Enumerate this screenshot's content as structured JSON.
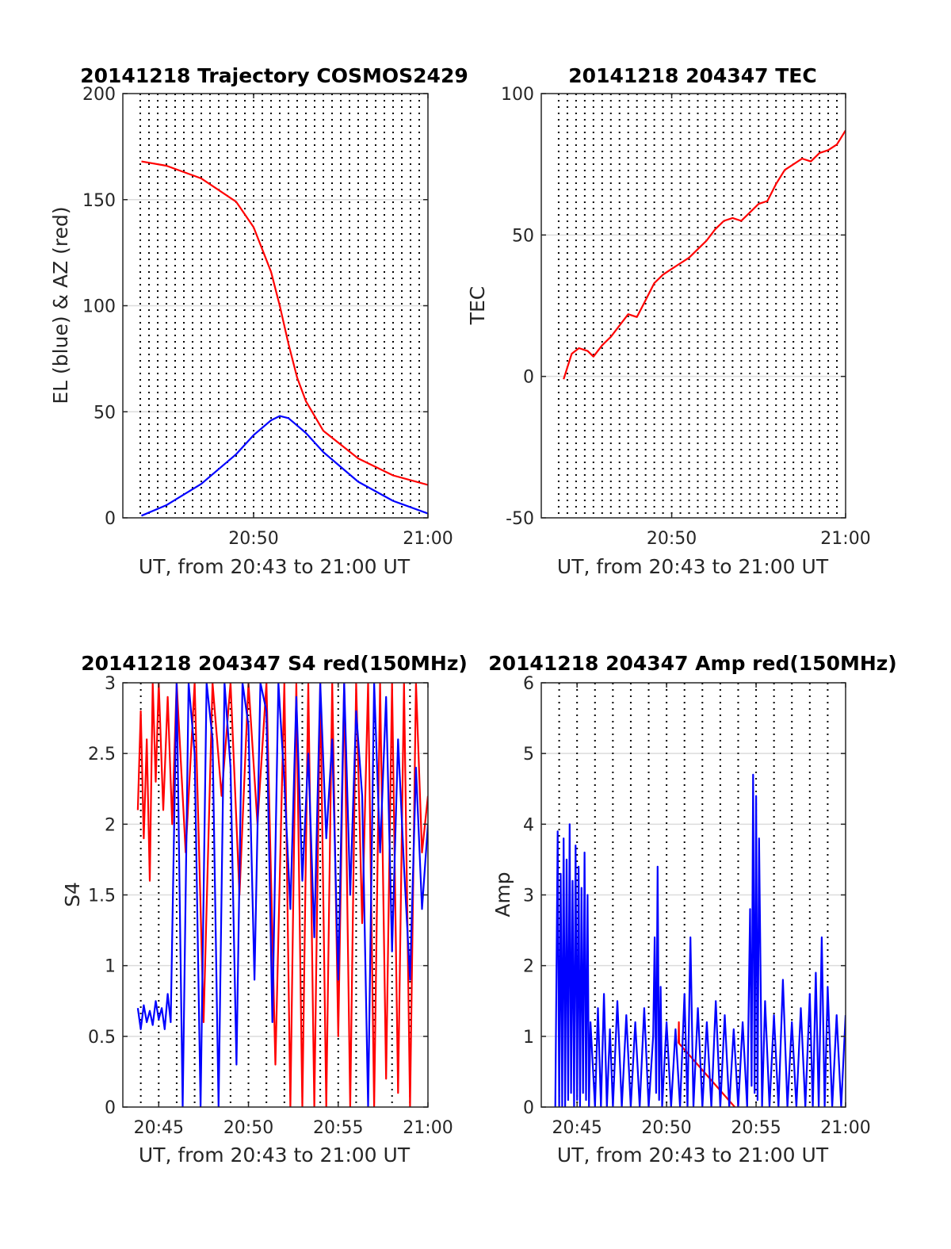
{
  "figure": {
    "background": "#ffffff",
    "grid_color": "#dcdcdc",
    "vline_color": "#000000",
    "axis_color": "#262626"
  },
  "chart_data": [
    {
      "type": "line",
      "title": "20141218 Trajectory COSMOS2429",
      "xlabel": "UT, from 20:43 to 21:00 UT",
      "ylabel": "EL (blue) & AZ (red)",
      "xlim": [
        "20:42:30",
        "21:00:00"
      ],
      "ylim": [
        0,
        200
      ],
      "yticks": [
        0,
        50,
        100,
        150,
        200
      ],
      "xticks": [
        "20:50",
        "21:00"
      ],
      "grid": true,
      "series": [
        {
          "color": "#ff0000",
          "x": [
            "20:43:34",
            "20:45:00",
            "20:47:00",
            "20:49:00",
            "20:50:00",
            "20:51:00",
            "20:51:30",
            "20:52:00",
            "20:52:30",
            "20:53:00",
            "20:54:00",
            "20:56:00",
            "20:58:00",
            "21:00:00"
          ],
          "values": [
            168,
            166,
            160,
            149,
            137,
            116,
            100,
            82,
            66,
            55,
            41,
            28,
            20,
            15.5
          ]
        },
        {
          "color": "#0000ff",
          "x": [
            "20:43:34",
            "20:45:00",
            "20:47:00",
            "20:49:00",
            "20:50:00",
            "20:51:00",
            "20:51:30",
            "20:52:00",
            "20:53:00",
            "20:54:00",
            "20:56:00",
            "20:58:00",
            "21:00:00"
          ],
          "values": [
            1,
            6,
            16,
            30,
            39,
            46,
            48,
            47,
            40,
            31,
            17,
            8,
            2
          ]
        }
      ],
      "vlines": [
        "20:43:30",
        "20:44:00",
        "20:44:30",
        "20:45:00",
        "20:45:30",
        "20:46:00",
        "20:46:30",
        "20:47:00",
        "20:47:30",
        "20:48:00",
        "20:48:30",
        "20:49:00",
        "20:49:30",
        "20:50:00",
        "20:50:30",
        "20:51:00",
        "20:51:30",
        "20:52:00",
        "20:52:30",
        "20:53:00",
        "20:53:30",
        "20:54:00",
        "20:54:30",
        "20:55:00",
        "20:55:30",
        "20:56:00",
        "20:56:30",
        "20:57:00",
        "20:57:30",
        "20:58:00",
        "20:58:30",
        "20:59:00",
        "20:59:30"
      ]
    },
    {
      "type": "line",
      "title": "20141218 204347 TEC",
      "xlabel": "UT, from 20:43 to 21:00 UT",
      "ylabel": "TEC",
      "xlim": [
        "20:42:30",
        "21:00:00"
      ],
      "ylim": [
        -50,
        100
      ],
      "yticks": [
        -50,
        0,
        50,
        100
      ],
      "xticks": [
        "20:50",
        "21:00"
      ],
      "grid": true,
      "series": [
        {
          "color": "#ff0000",
          "x": [
            "20:43:47",
            "20:44:15",
            "20:44:40",
            "20:45:10",
            "20:45:30",
            "20:46:00",
            "20:46:30",
            "20:47:00",
            "20:47:30",
            "20:48:00",
            "20:48:30",
            "20:49:00",
            "20:49:30",
            "20:50:00",
            "20:50:30",
            "20:51:00",
            "20:51:30",
            "20:52:00",
            "20:52:30",
            "20:53:00",
            "20:53:30",
            "20:54:00",
            "20:54:30",
            "20:55:00",
            "20:55:30",
            "20:56:00",
            "20:56:30",
            "20:57:00",
            "20:57:30",
            "20:58:00",
            "20:58:30",
            "20:59:00",
            "20:59:30",
            "21:00:00"
          ],
          "values": [
            -1,
            8,
            10,
            9,
            7,
            11,
            14,
            18,
            22,
            21,
            27,
            33,
            36,
            38,
            40,
            42,
            45,
            48,
            52,
            55,
            56,
            55,
            58,
            61,
            62,
            68,
            73,
            75,
            77,
            76,
            79,
            80,
            82,
            87
          ]
        }
      ],
      "vlines": [
        "20:43:30",
        "20:44:00",
        "20:44:30",
        "20:45:00",
        "20:45:30",
        "20:46:00",
        "20:46:30",
        "20:47:00",
        "20:47:30",
        "20:48:00",
        "20:48:30",
        "20:49:00",
        "20:49:30",
        "20:50:00",
        "20:50:30",
        "20:51:00",
        "20:51:30",
        "20:52:00",
        "20:52:30",
        "20:53:00",
        "20:53:30",
        "20:54:00",
        "20:54:30",
        "20:55:00",
        "20:55:30",
        "20:56:00",
        "20:56:30",
        "20:57:00",
        "20:57:30",
        "20:58:00",
        "20:58:30",
        "20:59:00",
        "20:59:30"
      ]
    },
    {
      "type": "line",
      "title": "20141218 204347 S4 red(150MHz)",
      "xlabel": "UT, from 20:43 to 21:00 UT",
      "ylabel": "S4",
      "xlim": [
        "20:43:00",
        "21:00:00"
      ],
      "ylim": [
        0,
        3
      ],
      "yticks": [
        0,
        0.5,
        1,
        1.5,
        2,
        2.5,
        3
      ],
      "ytick_labels": [
        "0",
        "0.5",
        "1",
        "1.5",
        "2",
        "2.5",
        "3"
      ],
      "xticks": [
        "20:45",
        "20:50",
        "20:55",
        "21:00"
      ],
      "grid": true,
      "series": [
        {
          "color": "#ff0000",
          "x": [
            "20:43:50",
            "20:44:00",
            "20:44:10",
            "20:44:20",
            "20:44:30",
            "20:44:40",
            "20:44:50",
            "20:45:00",
            "20:45:15",
            "20:45:30",
            "20:45:45",
            "20:46:00",
            "20:46:30",
            "20:47:00",
            "20:47:30",
            "20:48:00",
            "20:48:30",
            "20:49:00",
            "20:49:30",
            "20:50:00",
            "20:50:30",
            "20:51:00",
            "20:51:30",
            "20:52:00",
            "20:52:20",
            "20:52:40",
            "20:53:00",
            "20:53:20",
            "20:53:40",
            "20:54:00",
            "20:54:20",
            "20:54:40",
            "20:55:00",
            "20:55:20",
            "20:55:40",
            "20:56:00",
            "20:56:20",
            "20:56:40",
            "20:57:00",
            "20:57:20",
            "20:57:40",
            "20:58:00",
            "20:58:20",
            "20:58:40",
            "20:59:00",
            "20:59:20",
            "20:59:40",
            "21:00:00"
          ],
          "values": [
            2.1,
            2.8,
            1.9,
            2.6,
            1.6,
            3,
            2.3,
            3,
            2.1,
            2.9,
            2.0,
            3,
            1.8,
            3,
            0.6,
            3,
            2.2,
            3,
            1.5,
            3,
            2.0,
            3,
            0.3,
            3,
            0,
            3,
            0,
            3,
            0,
            3,
            0,
            3,
            0.5,
            3,
            0,
            3,
            1.3,
            3,
            0,
            3,
            0.2,
            3,
            0.1,
            3,
            0,
            3,
            1.8,
            2.2
          ]
        },
        {
          "color": "#0000ff",
          "x": [
            "20:43:50",
            "20:44:00",
            "20:44:10",
            "20:44:20",
            "20:44:30",
            "20:44:40",
            "20:44:50",
            "20:45:00",
            "20:45:10",
            "20:45:20",
            "20:45:30",
            "20:45:40",
            "20:46:00",
            "20:46:20",
            "20:46:40",
            "20:47:00",
            "20:47:20",
            "20:47:40",
            "20:48:00",
            "20:48:20",
            "20:48:40",
            "20:49:00",
            "20:49:20",
            "20:49:40",
            "20:50:00",
            "20:50:20",
            "20:50:40",
            "20:51:00",
            "20:51:20",
            "20:51:40",
            "20:52:00",
            "20:52:20",
            "20:52:40",
            "20:53:00",
            "20:53:20",
            "20:53:40",
            "20:54:00",
            "20:54:20",
            "20:54:40",
            "20:55:00",
            "20:55:20",
            "20:55:40",
            "20:56:00",
            "20:56:20",
            "20:56:40",
            "20:57:00",
            "20:57:20",
            "20:57:40",
            "20:58:00",
            "20:58:20",
            "20:58:40",
            "20:59:00",
            "20:59:20",
            "20:59:40",
            "21:00:00"
          ],
          "values": [
            0.7,
            0.55,
            0.72,
            0.6,
            0.68,
            0.58,
            0.75,
            0.62,
            0.7,
            0.55,
            0.8,
            0.6,
            3,
            0,
            3,
            2.5,
            0,
            3,
            2.6,
            0,
            3,
            2.4,
            0.3,
            3,
            2.7,
            0.9,
            3,
            2.8,
            0.6,
            3,
            2.3,
            1.4,
            2.9,
            1.6,
            2.5,
            1.2,
            3,
            1.9,
            2.6,
            0.9,
            3,
            1.5,
            2.8,
            2.2,
            0,
            3,
            1.8,
            2.9,
            1.1,
            2.6,
            1.7,
            0.9,
            2.4,
            1.4,
            2.0
          ]
        }
      ],
      "vlines": [
        "20:44:00",
        "20:45:00",
        "20:46:00",
        "20:47:00",
        "20:48:00",
        "20:49:00",
        "20:50:00",
        "20:51:00",
        "20:52:00",
        "20:53:00",
        "20:54:00",
        "20:55:00",
        "20:56:00",
        "20:57:00",
        "20:58:00",
        "20:59:00"
      ]
    },
    {
      "type": "line",
      "title": "20141218 204347 Amp red(150MHz)",
      "xlabel": "UT, from 20:43 to 21:00 UT",
      "ylabel": "Amp",
      "xlim": [
        "20:43:00",
        "21:00:00"
      ],
      "ylim": [
        0,
        6
      ],
      "yticks": [
        0,
        1,
        2,
        3,
        4,
        5,
        6
      ],
      "xticks": [
        "20:45",
        "20:50",
        "20:55",
        "21:00"
      ],
      "grid": true,
      "series": [
        {
          "color": "#ff0000",
          "x": [
            "20:50:40",
            "20:50:41",
            "20:50:42",
            "20:53:59",
            "20:54:00"
          ],
          "values": [
            0.9,
            1.2,
            0.9,
            -0.05,
            0.05
          ]
        },
        {
          "color": "#0000ff",
          "x": [
            "20:43:47",
            "20:43:55",
            "20:44:00",
            "20:44:05",
            "20:44:10",
            "20:44:15",
            "20:44:20",
            "20:44:25",
            "20:44:30",
            "20:44:35",
            "20:44:40",
            "20:44:45",
            "20:44:50",
            "20:44:55",
            "20:45:00",
            "20:45:05",
            "20:45:10",
            "20:45:15",
            "20:45:20",
            "20:45:25",
            "20:45:30",
            "20:45:35",
            "20:45:40",
            "20:45:45",
            "20:46:00",
            "20:46:10",
            "20:46:20",
            "20:46:30",
            "20:46:40",
            "20:46:50",
            "20:47:00",
            "20:47:15",
            "20:47:30",
            "20:47:45",
            "20:48:00",
            "20:48:15",
            "20:48:30",
            "20:48:45",
            "20:49:00",
            "20:49:15",
            "20:49:20",
            "20:49:25",
            "20:49:30",
            "20:49:35",
            "20:49:40",
            "20:49:45",
            "20:50:00",
            "20:50:15",
            "20:50:30",
            "20:50:45",
            "20:51:00",
            "20:51:10",
            "20:51:20",
            "20:51:30",
            "20:51:45",
            "20:52:00",
            "20:52:15",
            "20:52:30",
            "20:52:45",
            "20:53:00",
            "20:53:15",
            "20:53:30",
            "20:53:45",
            "20:54:00",
            "20:54:15",
            "20:54:30",
            "20:54:40",
            "20:54:45",
            "20:54:50",
            "20:54:55",
            "20:55:00",
            "20:55:05",
            "20:55:10",
            "20:55:20",
            "20:55:30",
            "20:55:45",
            "20:56:00",
            "20:56:15",
            "20:56:30",
            "20:56:45",
            "20:57:00",
            "20:57:15",
            "20:57:30",
            "20:57:45",
            "20:58:00",
            "20:58:10",
            "20:58:20",
            "20:58:30",
            "20:58:40",
            "20:58:50",
            "20:59:00",
            "20:59:15",
            "20:59:30",
            "20:59:45",
            "21:00:00"
          ],
          "values": [
            0,
            3.9,
            0,
            3.3,
            0,
            3.8,
            0,
            3.5,
            0.1,
            4.0,
            0.2,
            3.2,
            0,
            3.7,
            0.1,
            3.4,
            0,
            3.1,
            0.2,
            3.6,
            0.1,
            3.0,
            0,
            1.2,
            0,
            1.4,
            0,
            1.6,
            0,
            1.1,
            0,
            1.5,
            0,
            1.3,
            0,
            1.2,
            0,
            1.4,
            0,
            1.0,
            2.4,
            0.2,
            3.4,
            0.1,
            1.7,
            0,
            1.2,
            0,
            1.1,
            0,
            1.6,
            0,
            2.4,
            0,
            1.4,
            0,
            1.2,
            0,
            1.5,
            0,
            1.3,
            0,
            1.1,
            0,
            1.2,
            0,
            2.8,
            0.3,
            4.7,
            0.2,
            4.4,
            0.1,
            3.8,
            0,
            1.5,
            0,
            1.3,
            0,
            1.8,
            0,
            1.2,
            0,
            1.4,
            0,
            1.6,
            0,
            1.9,
            0,
            2.4,
            0,
            1.7,
            0,
            1.3,
            0,
            1.3
          ]
        }
      ],
      "vlines": [
        "20:44:00",
        "20:45:00",
        "20:46:00",
        "20:47:00",
        "20:48:00",
        "20:49:00",
        "20:50:00",
        "20:51:00",
        "20:52:00",
        "20:53:00",
        "20:54:00",
        "20:55:00",
        "20:56:00",
        "20:57:00",
        "20:58:00",
        "20:59:00"
      ]
    }
  ]
}
